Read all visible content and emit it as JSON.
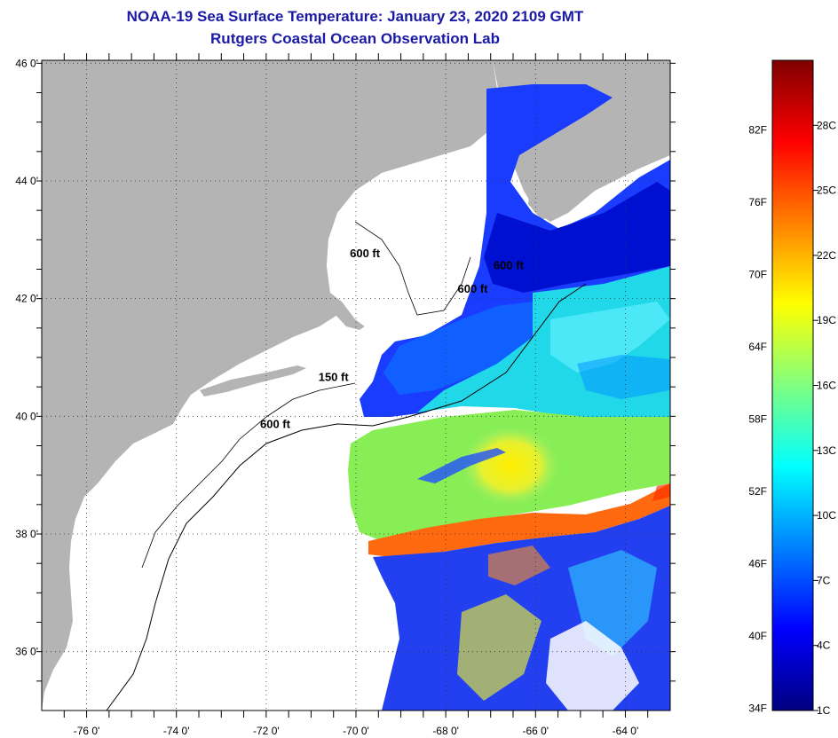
{
  "header": {
    "title": "NOAA-19 Sea Surface Temperature:  January 23, 2020 2109 GMT",
    "subtitle": "Rutgers Coastal Ocean Observation Lab"
  },
  "map": {
    "latitude_ticks": [
      {
        "value": 46,
        "label": "46 0'"
      },
      {
        "value": 44,
        "label": "44 0'"
      },
      {
        "value": 42,
        "label": "42 0'"
      },
      {
        "value": 40,
        "label": "40 0'"
      },
      {
        "value": 38,
        "label": "38 0'"
      },
      {
        "value": 36,
        "label": "36 0'"
      }
    ],
    "longitude_ticks": [
      {
        "value": -76,
        "label": "-76 0'"
      },
      {
        "value": -74,
        "label": "-74 0'"
      },
      {
        "value": -72,
        "label": "-72 0'"
      },
      {
        "value": -70,
        "label": "-70 0'"
      },
      {
        "value": -68,
        "label": "-68 0'"
      },
      {
        "value": -66,
        "label": "-66 0'"
      },
      {
        "value": -64,
        "label": "-64 0'"
      }
    ],
    "lat_range": [
      35,
      46.05
    ],
    "lon_range": [
      -77,
      -63
    ],
    "contour_labels": [
      {
        "label": "600 ft",
        "lon": -69.8,
        "lat": 42.7
      },
      {
        "label": "600 ft",
        "lon": -66.6,
        "lat": 42.5
      },
      {
        "label": "600 ft",
        "lon": -67.4,
        "lat": 42.1
      },
      {
        "label": "150 ft",
        "lon": -70.5,
        "lat": 40.6
      },
      {
        "label": "600 ft",
        "lon": -71.8,
        "lat": 39.8
      }
    ],
    "colors": {
      "land": "#b4b4b4",
      "no_data": "#ffffff"
    }
  },
  "colorbar": {
    "fahrenheit_labels": [
      {
        "label": "82F",
        "value": 82
      },
      {
        "label": "76F",
        "value": 76
      },
      {
        "label": "70F",
        "value": 70
      },
      {
        "label": "64F",
        "value": 64
      },
      {
        "label": "58F",
        "value": 58
      },
      {
        "label": "52F",
        "value": 52
      },
      {
        "label": "46F",
        "value": 46
      },
      {
        "label": "40F",
        "value": 40
      },
      {
        "label": "34F",
        "value": 34
      }
    ],
    "celsius_labels": [
      {
        "label": "28C",
        "value": 28
      },
      {
        "label": "25C",
        "value": 25
      },
      {
        "label": "22C",
        "value": 22
      },
      {
        "label": "19C",
        "value": 19
      },
      {
        "label": "16C",
        "value": 16
      },
      {
        "label": "13C",
        "value": 13
      },
      {
        "label": "10C",
        "value": 10
      },
      {
        "label": "7C",
        "value": 7
      },
      {
        "label": "4C",
        "value": 4
      },
      {
        "label": "1C",
        "value": 1
      }
    ],
    "range_celsius": [
      1,
      31
    ],
    "gradient": [
      "#00007f",
      "#0000ff",
      "#0080ff",
      "#00ffff",
      "#80ff80",
      "#ffff00",
      "#ff8000",
      "#ff0000",
      "#7f0000"
    ]
  }
}
